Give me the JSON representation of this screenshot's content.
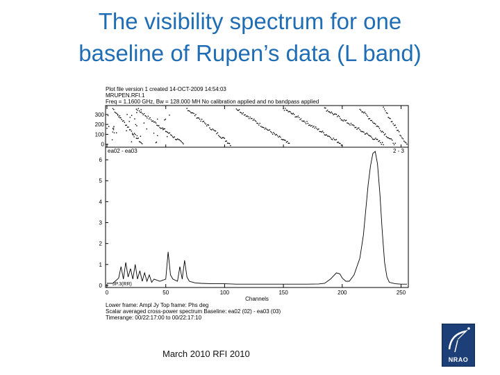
{
  "slide": {
    "title_line1": "The visibility spectrum for one",
    "title_line2": "baseline of Rupen’s data (L band)",
    "footer": "March 2010   RFI 2010",
    "logo_text": "NRAO"
  },
  "plot_header": {
    "line1": "Plot file version 1  created 14-OCT-2009 14:54:03",
    "line2": "MRUPEN.RFI.1",
    "line3": "Freq = 1.1600 GHz, Bw = 128.000 MH   No calibration applied and no bandpass applied"
  },
  "plot_footer": {
    "line1": "Lower frame: Ampl Jy   Top frame: Phs deg",
    "line2": "Scalar averaged cross-power spectrum    Baseline: ea02 (02) - ea03 (03)",
    "line3": "Timerange: 00/22:17:00 to 00/22:17:10"
  },
  "chart_data": [
    {
      "type": "scatter",
      "panel": "phase",
      "ylabel": "",
      "yticks": [
        "300",
        "200",
        "100",
        "0"
      ],
      "ylim": [
        -30,
        390
      ],
      "xlim": [
        0,
        255
      ],
      "phase_wrap_segments": [
        {
          "x0": 5,
          "x1": 30
        },
        {
          "x0": 25,
          "x1": 65
        },
        {
          "x0": 68,
          "x1": 105
        },
        {
          "x0": 110,
          "x1": 155
        },
        {
          "x0": 150,
          "x1": 200
        },
        {
          "x0": 185,
          "x1": 235
        },
        {
          "x0": 215,
          "x1": 245
        },
        {
          "x0": 235,
          "x1": 255
        }
      ]
    },
    {
      "type": "line",
      "panel": "amplitude",
      "baseline_label": "ea02 - ea03",
      "corner_label": "2 - 3",
      "stokes_label": "JP.3(RR)",
      "xlabel": "Channels",
      "xticks": [
        "0",
        "50",
        "100",
        "150",
        "200",
        "250"
      ],
      "yticks": [
        "6",
        "5",
        "4",
        "3",
        "2",
        "1",
        "0"
      ],
      "xlim": [
        0,
        255
      ],
      "ylim": [
        -0.1,
        6.6
      ],
      "x": [
        0,
        5,
        10,
        12,
        14,
        16,
        18,
        20,
        22,
        24,
        26,
        28,
        30,
        32,
        34,
        36,
        38,
        40,
        45,
        50,
        52,
        54,
        56,
        60,
        62,
        64,
        66,
        68,
        70,
        75,
        80,
        90,
        100,
        110,
        120,
        130,
        140,
        150,
        160,
        170,
        180,
        185,
        190,
        195,
        198,
        200,
        203,
        206,
        210,
        215,
        218,
        220,
        222,
        224,
        226,
        228,
        230,
        232,
        234,
        236,
        238,
        240,
        245,
        250,
        255
      ],
      "y": [
        0.1,
        0.1,
        0.35,
        0.9,
        0.3,
        1.1,
        0.4,
        0.8,
        0.3,
        1.0,
        0.3,
        0.7,
        0.2,
        0.6,
        0.2,
        0.5,
        0.15,
        0.3,
        0.2,
        0.3,
        1.6,
        0.5,
        0.3,
        0.2,
        0.9,
        0.3,
        1.2,
        0.4,
        0.2,
        0.12,
        0.1,
        0.08,
        0.08,
        0.06,
        0.06,
        0.06,
        0.06,
        0.06,
        0.06,
        0.06,
        0.07,
        0.1,
        0.3,
        0.6,
        0.55,
        0.35,
        0.2,
        0.2,
        0.5,
        1.3,
        2.4,
        3.6,
        4.8,
        5.7,
        6.3,
        6.4,
        5.8,
        4.4,
        2.6,
        1.1,
        0.4,
        0.15,
        0.08,
        0.06,
        0.06
      ]
    }
  ]
}
